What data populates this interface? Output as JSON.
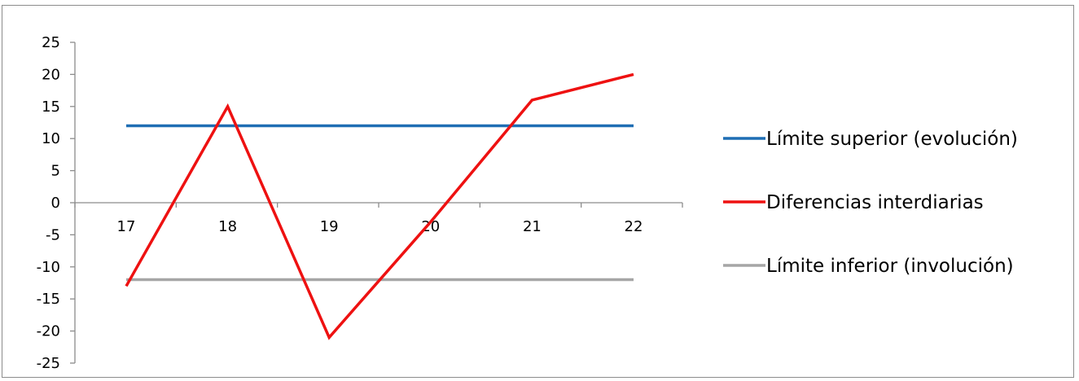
{
  "chart_data": {
    "type": "line",
    "x": [
      "17",
      "18",
      "19",
      "20",
      "21",
      "22"
    ],
    "ylim": [
      -25,
      25
    ],
    "yticks": [
      25,
      20,
      15,
      10,
      5,
      0,
      -5,
      -10,
      -15,
      -20,
      -25
    ],
    "grid": false,
    "legend_position": "right",
    "series": [
      {
        "name": "Límite superior (evolución)",
        "color": "#1f6eb4",
        "values": [
          12,
          12,
          12,
          12,
          12,
          12
        ]
      },
      {
        "name": "Diferencias interdiarias",
        "color": "#ee1111",
        "values": [
          -13,
          15,
          -21,
          -3,
          16,
          20
        ]
      },
      {
        "name": "Límite inferior (involución)",
        "color": "#a6a6a6",
        "values": [
          -12,
          -12,
          -12,
          -12,
          -12,
          -12
        ]
      }
    ]
  }
}
